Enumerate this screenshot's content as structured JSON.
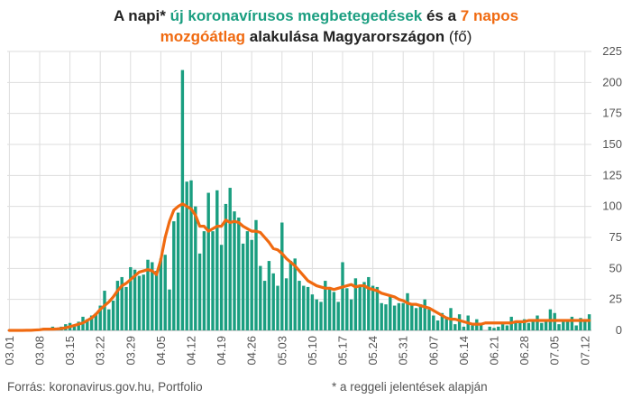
{
  "title": {
    "p1": "A napi* ",
    "p2": "új koronavírusos megbetegedések",
    "p3": " és a ",
    "p4": "7 napos",
    "p5": "mozgóátlag",
    "p6": " alakulása Magyarországon ",
    "p7": "(fő)"
  },
  "footer": {
    "source": "Forrás: koronavirus.gov.hu, Portfolio",
    "note": "* a reggeli jelentések alapján"
  },
  "colors": {
    "bars": "#1a9e80",
    "line": "#f06a10",
    "grid": "#dddddd",
    "text": "#555555"
  },
  "chart_data": {
    "type": "bar",
    "title": "A napi* új koronavírusos megbetegedések és a 7 napos mozgóátlag alakulása Magyarországon (fő)",
    "ylim": [
      0,
      225
    ],
    "yticks": [
      0,
      25,
      50,
      75,
      100,
      125,
      150,
      175,
      200,
      225
    ],
    "y_axis_side": "right",
    "grid": true,
    "x_tick_labels": [
      "03.01",
      "03.08",
      "03.15",
      "03.22",
      "03.29",
      "04.05",
      "04.12",
      "04.19",
      "04.26",
      "05.03",
      "05.10",
      "05.17",
      "05.24",
      "05.31",
      "06.07",
      "06.14",
      "06.21",
      "06.28",
      "07.05",
      "07.12"
    ],
    "x_tick_every": 7,
    "series": [
      {
        "name": "új koronavírusos megbetegedések",
        "kind": "bar",
        "values": [
          0,
          0,
          0,
          0,
          1,
          0,
          0,
          0,
          2,
          2,
          3,
          1,
          3,
          5,
          6,
          4,
          7,
          11,
          9,
          12,
          14,
          20,
          32,
          17,
          24,
          40,
          43,
          35,
          51,
          49,
          44,
          45,
          57,
          55,
          48,
          58,
          61,
          33,
          88,
          95,
          210,
          120,
          121,
          100,
          62,
          80,
          111,
          80,
          113,
          69,
          102,
          115,
          96,
          91,
          70,
          80,
          73,
          89,
          52,
          40,
          56,
          46,
          36,
          87,
          42,
          56,
          58,
          40,
          36,
          35,
          29,
          25,
          23,
          40,
          35,
          31,
          23,
          55,
          34,
          25,
          42,
          35,
          39,
          43,
          36,
          35,
          22,
          21,
          28,
          20,
          22,
          22,
          30,
          21,
          18,
          21,
          25,
          17,
          12,
          8,
          14,
          11,
          18,
          5,
          13,
          3,
          12,
          4,
          9,
          6,
          0,
          3,
          2,
          3,
          5,
          4,
          11,
          6,
          8,
          9,
          6,
          8,
          12,
          6,
          9,
          17,
          14,
          5,
          9,
          8,
          11,
          4,
          10,
          7,
          13
        ]
      },
      {
        "name": "7 napos mozgóátlag",
        "kind": "line",
        "values": [
          0,
          0,
          0,
          0,
          0.1,
          0.1,
          0.3,
          0.5,
          1,
          1,
          1,
          1.2,
          1.5,
          2.1,
          3,
          4,
          5,
          6,
          8,
          10,
          13,
          17,
          20,
          23,
          27,
          32,
          36,
          38,
          41,
          44,
          47,
          48,
          49,
          48,
          45,
          57,
          75,
          88,
          97,
          100,
          102,
          100,
          98,
          93,
          84,
          84,
          80,
          82,
          84,
          84,
          89,
          87,
          88,
          87,
          84,
          82,
          80,
          80,
          79,
          75,
          71,
          66,
          65,
          62,
          58,
          55,
          52,
          48,
          44,
          40,
          38,
          36,
          35,
          34,
          34,
          33,
          34,
          35,
          36,
          37,
          35,
          36,
          36,
          34,
          33,
          32,
          30,
          29,
          28,
          27,
          25,
          24,
          22,
          21,
          21,
          20,
          19,
          18,
          16,
          14,
          12,
          10,
          9,
          9,
          8,
          7,
          6,
          5,
          5,
          5,
          6,
          6,
          6,
          6,
          6,
          6,
          6,
          7,
          7,
          7,
          8,
          8,
          8,
          8,
          8,
          8,
          8,
          8,
          8,
          8,
          8,
          8,
          8,
          8,
          8
        ]
      }
    ]
  }
}
